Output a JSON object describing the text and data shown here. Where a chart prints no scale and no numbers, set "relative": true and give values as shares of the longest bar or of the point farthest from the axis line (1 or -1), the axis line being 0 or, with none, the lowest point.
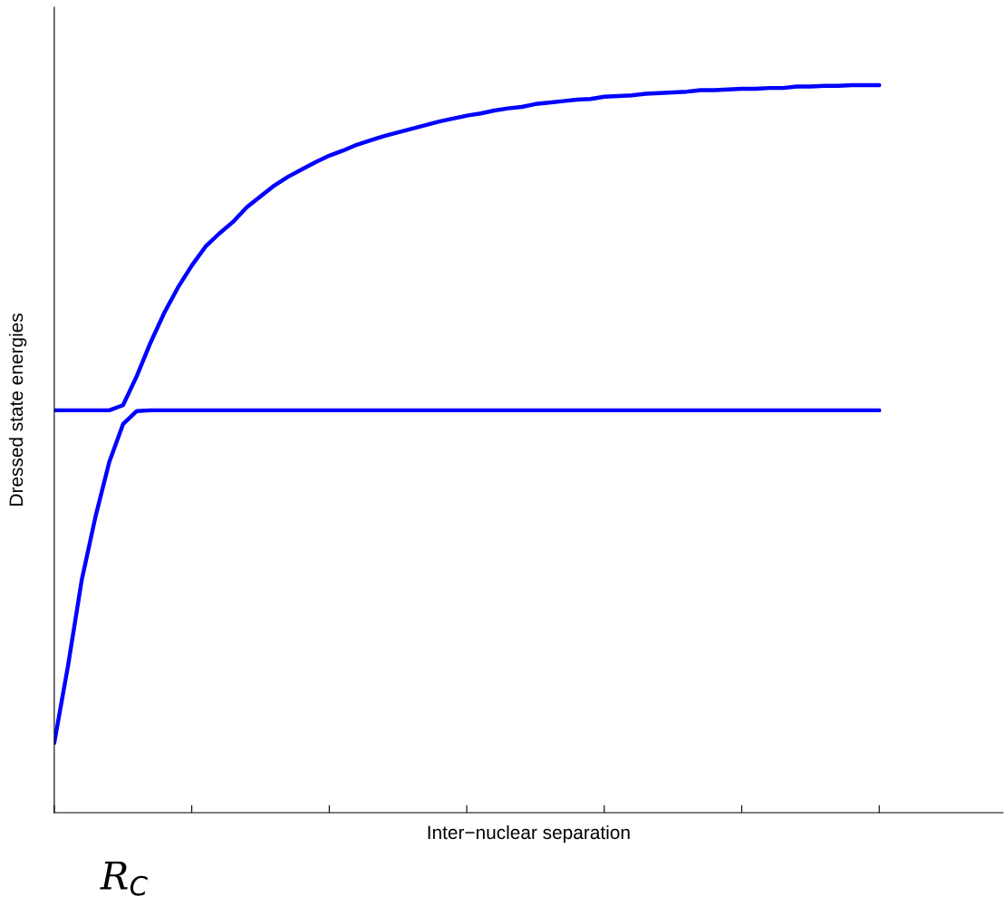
{
  "chart_data": {
    "type": "line",
    "relative": true,
    "xlabel": "Inter−nuclear separation",
    "ylabel": "Dressed state energies",
    "annotations": [
      "R$_{C}$"
    ],
    "categories": [
      null,
      null,
      null,
      null,
      null,
      null,
      null,
      null,
      null,
      null,
      null,
      null,
      null,
      null,
      null,
      null,
      null,
      null,
      null,
      null,
      null,
      null,
      null,
      null,
      null,
      null,
      null,
      null,
      null,
      null,
      null,
      null,
      null,
      null,
      null,
      null,
      null,
      null,
      null,
      null,
      null,
      null,
      null,
      null,
      null,
      null,
      null,
      null,
      null,
      null,
      null,
      null,
      null,
      null,
      null,
      null,
      null,
      null,
      null,
      null,
      null,
      null,
      null,
      null,
      null,
      null,
      null,
      null,
      null,
      null
    ],
    "series": [
      {
        "color": "#0000ff",
        "values": [
          0.553,
          0.553,
          0.553,
          0.553,
          0.553,
          0.56,
          0.6,
          0.646,
          0.687,
          0.722,
          0.752,
          0.778,
          0.796,
          0.812,
          0.832,
          0.847,
          0.862,
          0.874,
          0.884,
          0.894,
          0.903,
          0.91,
          0.918,
          0.924,
          0.93,
          0.935,
          0.94,
          0.945,
          0.95,
          0.954,
          0.958,
          0.961,
          0.965,
          0.968,
          0.97,
          0.974,
          0.976,
          0.978,
          0.98,
          0.981,
          0.984,
          0.985,
          0.986,
          0.988,
          0.989,
          0.99,
          0.991,
          0.993,
          0.993,
          0.994,
          0.995,
          0.995,
          0.996,
          0.996,
          0.998,
          0.998,
          0.999,
          0.999,
          1,
          1,
          1,
          null,
          null,
          null,
          null,
          null,
          null,
          null,
          null,
          null
        ]
      },
      {
        "color": "#0000ff",
        "values": [
          0.096,
          0.202,
          0.32,
          0.407,
          0.482,
          0.534,
          0.552,
          0.553,
          0.553,
          0.553,
          0.553,
          0.553,
          0.553,
          0.553,
          0.553,
          0.553,
          0.553,
          0.553,
          0.553,
          0.553,
          0.553,
          0.553,
          0.553,
          0.553,
          0.553,
          0.553,
          0.553,
          0.553,
          0.553,
          0.553,
          0.553,
          0.553,
          0.553,
          0.553,
          0.553,
          0.553,
          0.553,
          0.553,
          0.553,
          0.553,
          0.553,
          0.553,
          0.553,
          0.553,
          0.553,
          0.553,
          0.553,
          0.553,
          0.553,
          0.553,
          0.553,
          0.553,
          0.553,
          0.553,
          0.553,
          0.553,
          0.553,
          0.553,
          0.553,
          0.553,
          0.553,
          null,
          null,
          null,
          null,
          null,
          null,
          null,
          null,
          null
        ]
      }
    ],
    "tick_labels": false,
    "grid": false,
    "marker": "none",
    "line_style": "solid"
  }
}
